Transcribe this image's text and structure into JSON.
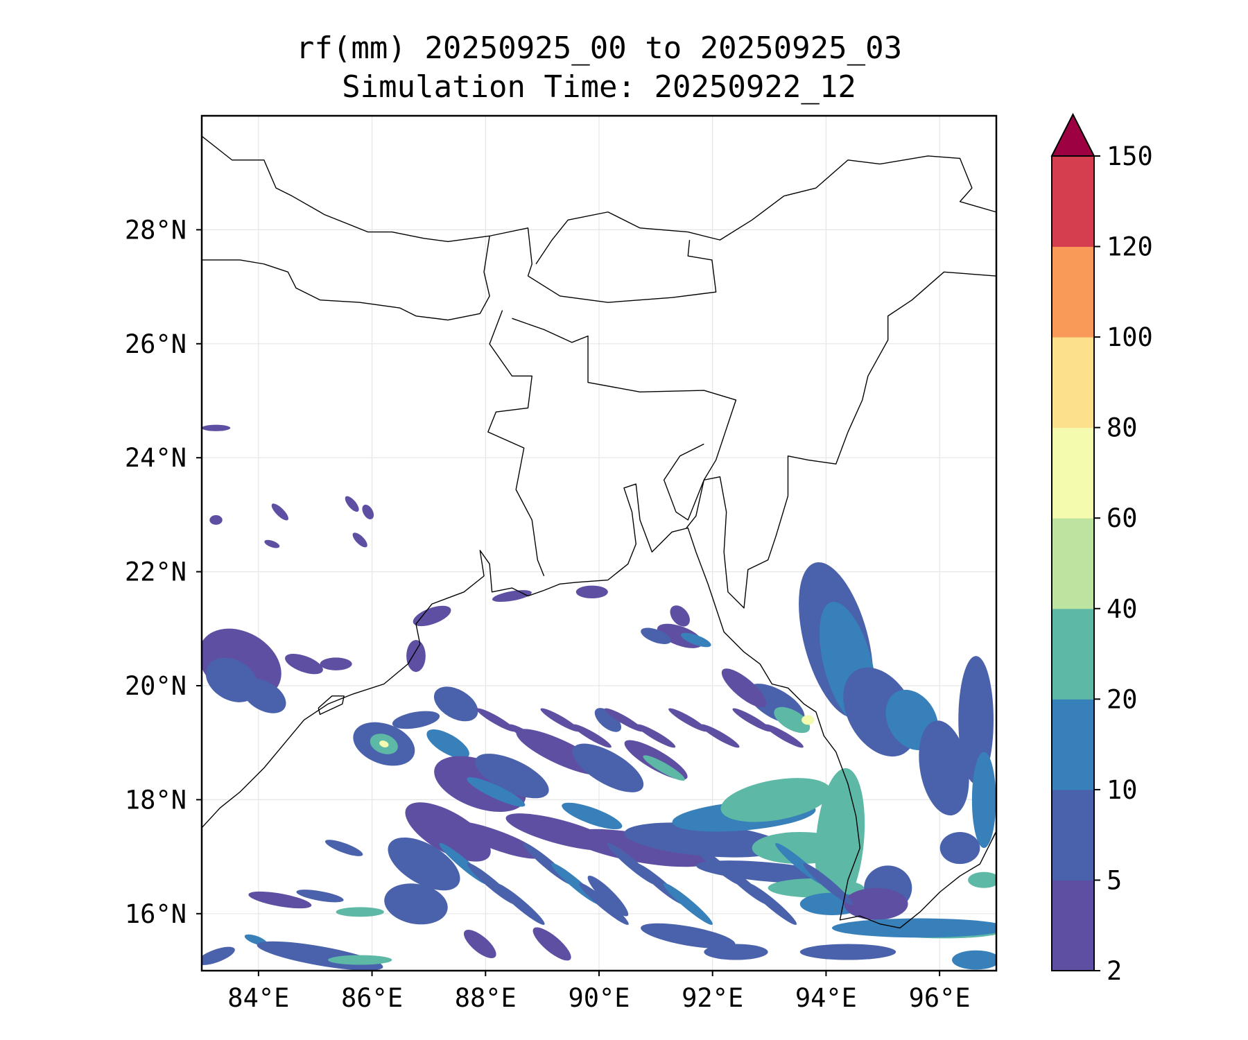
{
  "title": {
    "line1": "rf(mm) 20250925_00 to 20250925_03",
    "line2": "Simulation Time: 20250922_12"
  },
  "map": {
    "extent_lon": [
      83,
      97
    ],
    "extent_lat": [
      15,
      30
    ],
    "lon_ticks": [
      84,
      86,
      88,
      90,
      92,
      94,
      96
    ],
    "lon_labels": [
      "84°E",
      "86°E",
      "88°E",
      "90°E",
      "92°E",
      "94°E",
      "96°E"
    ],
    "lat_ticks": [
      16,
      18,
      20,
      22,
      24,
      26,
      28
    ],
    "lat_labels": [
      "16°N",
      "18°N",
      "20°N",
      "22°N",
      "24°N",
      "26°N",
      "28°N"
    ]
  },
  "colorbar": {
    "levels": [
      2,
      5,
      10,
      20,
      40,
      60,
      80,
      100,
      120,
      150
    ],
    "labels": [
      "2",
      "5",
      "10",
      "20",
      "40",
      "60",
      "80",
      "100",
      "120",
      "150"
    ],
    "colors": [
      "#5e4fa2",
      "#4a62ab",
      "#3880b9",
      "#5db8a6",
      "#bce3a0",
      "#f4fbae",
      "#fde08b",
      "#f99a58",
      "#d53e4f"
    ],
    "extend_color": "#9e0142",
    "extend": "max"
  }
}
